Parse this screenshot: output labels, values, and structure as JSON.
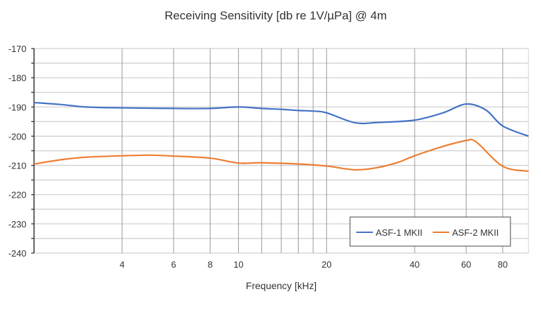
{
  "chart_data": {
    "type": "line",
    "title": "Receiving Sensitivity [db re 1V/µPa] @ 4m",
    "xlabel": "Frequency [kHz]",
    "ylabel": "",
    "x_scale": "log",
    "xlim": [
      2,
      98
    ],
    "ylim": [
      -240,
      -170
    ],
    "x_tick_labels": [
      "4",
      "6",
      "8",
      "10",
      "20",
      "40",
      "60",
      "80"
    ],
    "x_gridlines": [
      4,
      6,
      8,
      10,
      12,
      14,
      16,
      18,
      20,
      40,
      60,
      80
    ],
    "y_ticks": [
      -170,
      -180,
      -190,
      -200,
      -210,
      -220,
      -230,
      -240
    ],
    "y_minor_step": 5,
    "grid": true,
    "legend_position": "bottom-right",
    "series": [
      {
        "name": "ASF-1 MKII",
        "color": "#4472c4",
        "x": [
          2,
          2.5,
          3,
          4,
          6,
          8,
          10,
          12,
          14,
          16,
          18,
          20,
          25,
          30,
          40,
          50,
          60,
          70,
          80,
          98
        ],
        "y": [
          -188.5,
          -189.2,
          -190,
          -190.3,
          -190.5,
          -190.5,
          -190,
          -190.5,
          -190.8,
          -191.2,
          -191.4,
          -192,
          -195.4,
          -195.3,
          -194.5,
          -192,
          -189,
          -191,
          -196.5,
          -200
        ]
      },
      {
        "name": "ASF-2 MKII",
        "color": "#ed7d31",
        "x": [
          2,
          2.5,
          3,
          4,
          5,
          6,
          8,
          10,
          12,
          16,
          20,
          25,
          30,
          35,
          40,
          50,
          60,
          65,
          80,
          98
        ],
        "y": [
          -209.5,
          -208,
          -207.2,
          -206.7,
          -206.5,
          -206.8,
          -207.5,
          -209.2,
          -209.1,
          -209.5,
          -210.2,
          -211.5,
          -210.7,
          -209,
          -206.7,
          -203.5,
          -201.5,
          -202,
          -210.3,
          -212
        ]
      }
    ]
  }
}
